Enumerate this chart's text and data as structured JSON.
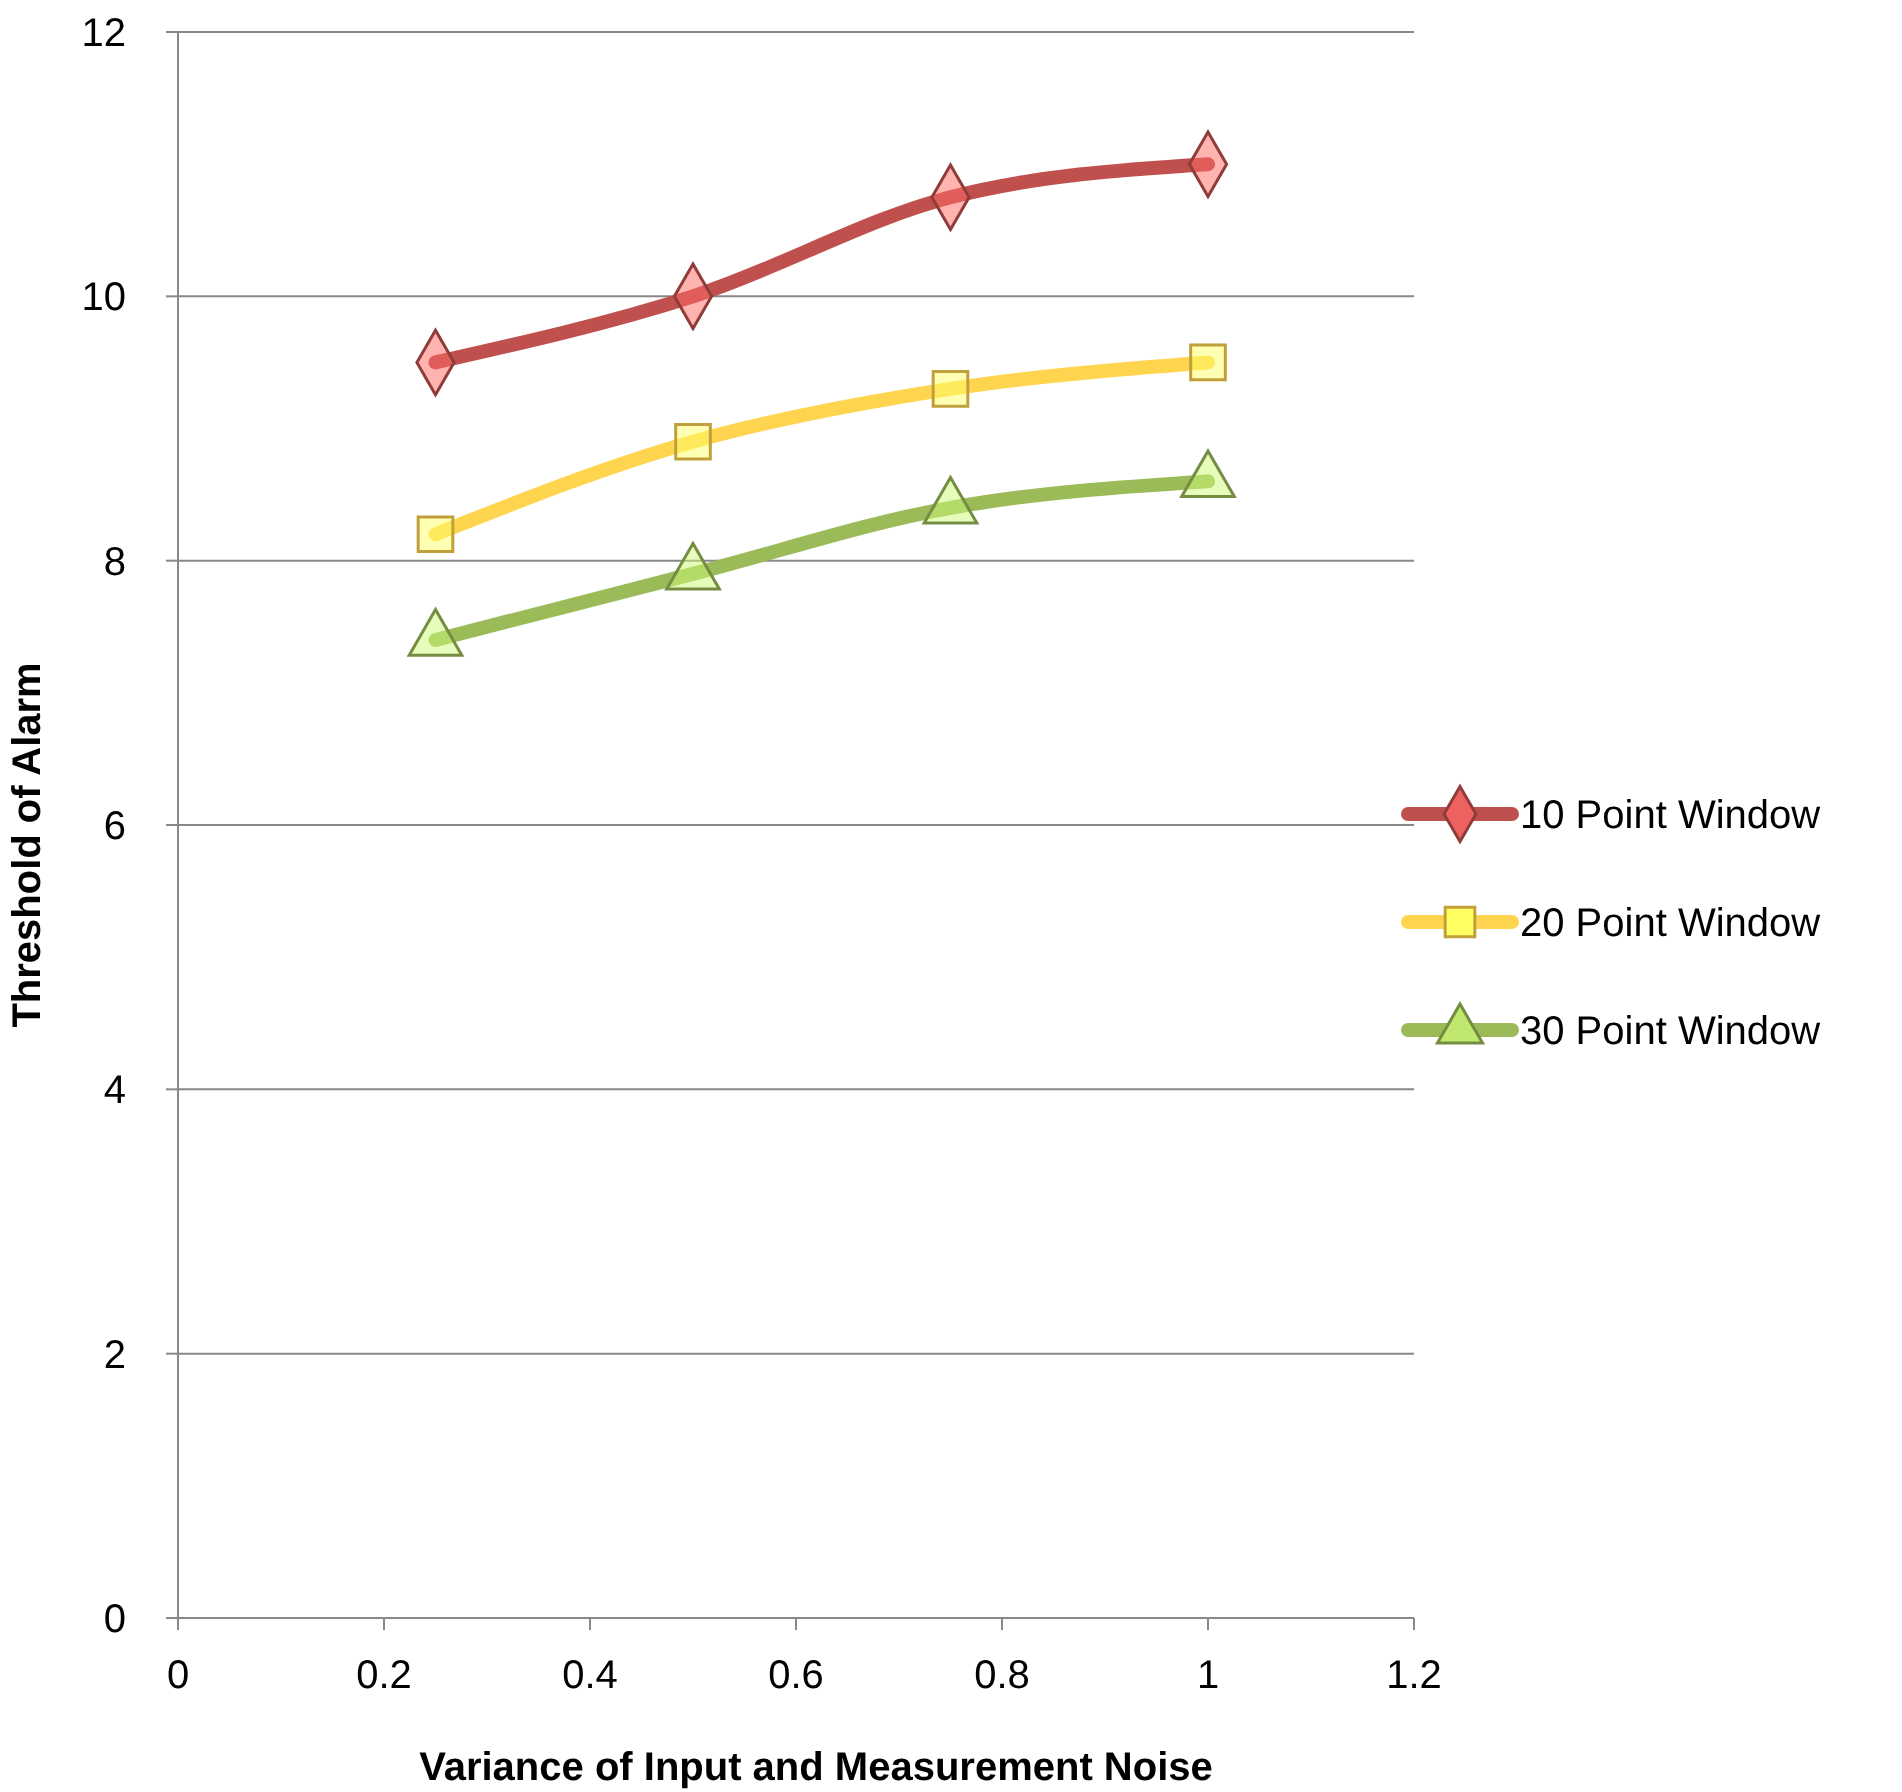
{
  "chart_data": {
    "type": "line",
    "xlabel": "Variance of Input and Measurement Noise",
    "ylabel": "Threshold of Alarm",
    "x": [
      0.25,
      0.5,
      0.75,
      1
    ],
    "series": [
      {
        "name": "10 Point Window",
        "color": "#c0504d",
        "marker": "diamond",
        "values": [
          9.5,
          10,
          10.75,
          11
        ]
      },
      {
        "name": "20 Point Window",
        "color": "#ffd54f",
        "marker": "square",
        "values": [
          8.2,
          8.9,
          9.3,
          9.5
        ]
      },
      {
        "name": "30 Point Window",
        "color": "#9bbb59",
        "marker": "triangle",
        "values": [
          7.4,
          7.9,
          8.4,
          8.6
        ]
      }
    ],
    "xlim": [
      0,
      1.2
    ],
    "xticks": [
      0,
      0.2,
      0.4,
      0.6,
      0.8,
      1,
      1.2
    ],
    "ylim": [
      0,
      12
    ],
    "yticks": [
      0,
      2,
      4,
      6,
      8,
      10,
      12
    ],
    "grid": "y",
    "legend": "right",
    "line_style": "solid"
  }
}
